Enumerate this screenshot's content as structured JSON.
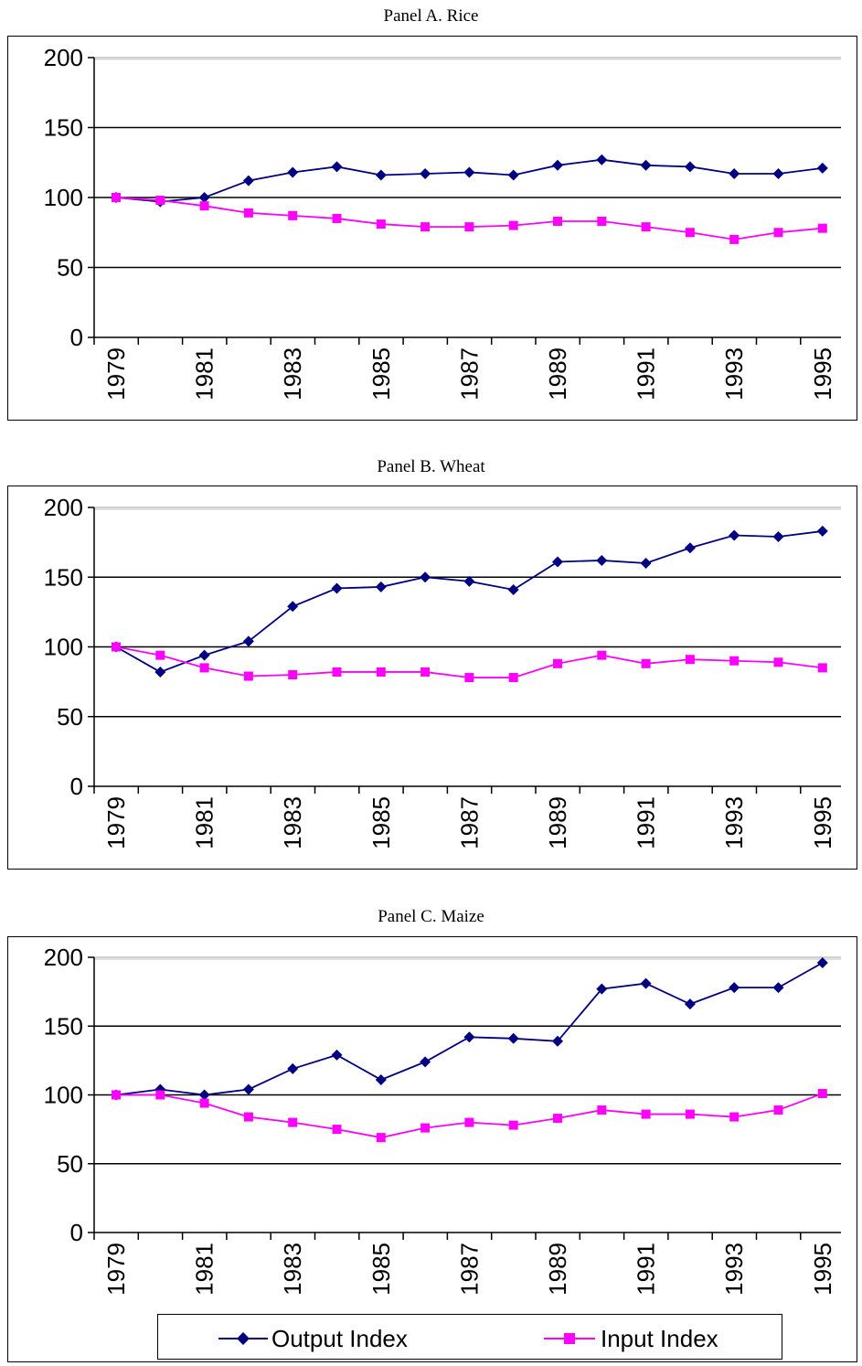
{
  "chart_data": [
    {
      "type": "line",
      "title": "Panel A.  Rice",
      "x": [
        "1979",
        "1980",
        "1981",
        "1982",
        "1983",
        "1984",
        "1985",
        "1986",
        "1987",
        "1988",
        "1989",
        "1990",
        "1991",
        "1992",
        "1993",
        "1994",
        "1995"
      ],
      "x_tick_labels": [
        "1979",
        "1981",
        "1983",
        "1985",
        "1987",
        "1989",
        "1991",
        "1993",
        "1995"
      ],
      "ylim": [
        0,
        200
      ],
      "y_ticks": [
        0,
        50,
        100,
        150,
        200
      ],
      "grid": true,
      "series": [
        {
          "name": "Output Index",
          "color": "#000080",
          "marker": "diamond",
          "values": [
            100,
            97,
            100,
            112,
            118,
            122,
            116,
            117,
            118,
            116,
            123,
            127,
            123,
            122,
            117,
            117,
            121
          ]
        },
        {
          "name": "Input Index",
          "color": "#ff00ff",
          "marker": "square",
          "values": [
            100,
            98,
            94,
            89,
            87,
            85,
            81,
            79,
            79,
            80,
            83,
            83,
            79,
            75,
            70,
            75,
            78
          ]
        }
      ]
    },
    {
      "type": "line",
      "title": "Panel B.  Wheat",
      "x": [
        "1979",
        "1980",
        "1981",
        "1982",
        "1983",
        "1984",
        "1985",
        "1986",
        "1987",
        "1988",
        "1989",
        "1990",
        "1991",
        "1992",
        "1993",
        "1994",
        "1995"
      ],
      "x_tick_labels": [
        "1979",
        "1981",
        "1983",
        "1985",
        "1987",
        "1989",
        "1991",
        "1993",
        "1995"
      ],
      "ylim": [
        0,
        200
      ],
      "y_ticks": [
        0,
        50,
        100,
        150,
        200
      ],
      "grid": true,
      "series": [
        {
          "name": "Output Index",
          "color": "#000080",
          "marker": "diamond",
          "values": [
            100,
            82,
            94,
            104,
            129,
            142,
            143,
            150,
            147,
            141,
            161,
            162,
            160,
            171,
            180,
            179,
            183
          ]
        },
        {
          "name": "Input Index",
          "color": "#ff00ff",
          "marker": "square",
          "values": [
            100,
            94,
            85,
            79,
            80,
            82,
            82,
            82,
            78,
            78,
            88,
            94,
            88,
            91,
            90,
            89,
            85
          ]
        }
      ]
    },
    {
      "type": "line",
      "title": "Panel C.  Maize",
      "x": [
        "1979",
        "1980",
        "1981",
        "1982",
        "1983",
        "1984",
        "1985",
        "1986",
        "1987",
        "1988",
        "1989",
        "1990",
        "1991",
        "1992",
        "1993",
        "1994",
        "1995"
      ],
      "x_tick_labels": [
        "1979",
        "1981",
        "1983",
        "1985",
        "1987",
        "1989",
        "1991",
        "1993",
        "1995"
      ],
      "ylim": [
        0,
        200
      ],
      "y_ticks": [
        0,
        50,
        100,
        150,
        200
      ],
      "grid": true,
      "legend": {
        "placement": "bottom",
        "entries": [
          "Output Index",
          "Input Index"
        ]
      },
      "series": [
        {
          "name": "Output Index",
          "color": "#000080",
          "marker": "diamond",
          "values": [
            100,
            104,
            100,
            104,
            119,
            129,
            111,
            124,
            142,
            141,
            139,
            177,
            181,
            166,
            178,
            178,
            196
          ]
        },
        {
          "name": "Input Index",
          "color": "#ff00ff",
          "marker": "square",
          "values": [
            100,
            100,
            94,
            84,
            80,
            75,
            69,
            76,
            80,
            78,
            83,
            89,
            86,
            86,
            84,
            89,
            101
          ]
        }
      ]
    }
  ]
}
